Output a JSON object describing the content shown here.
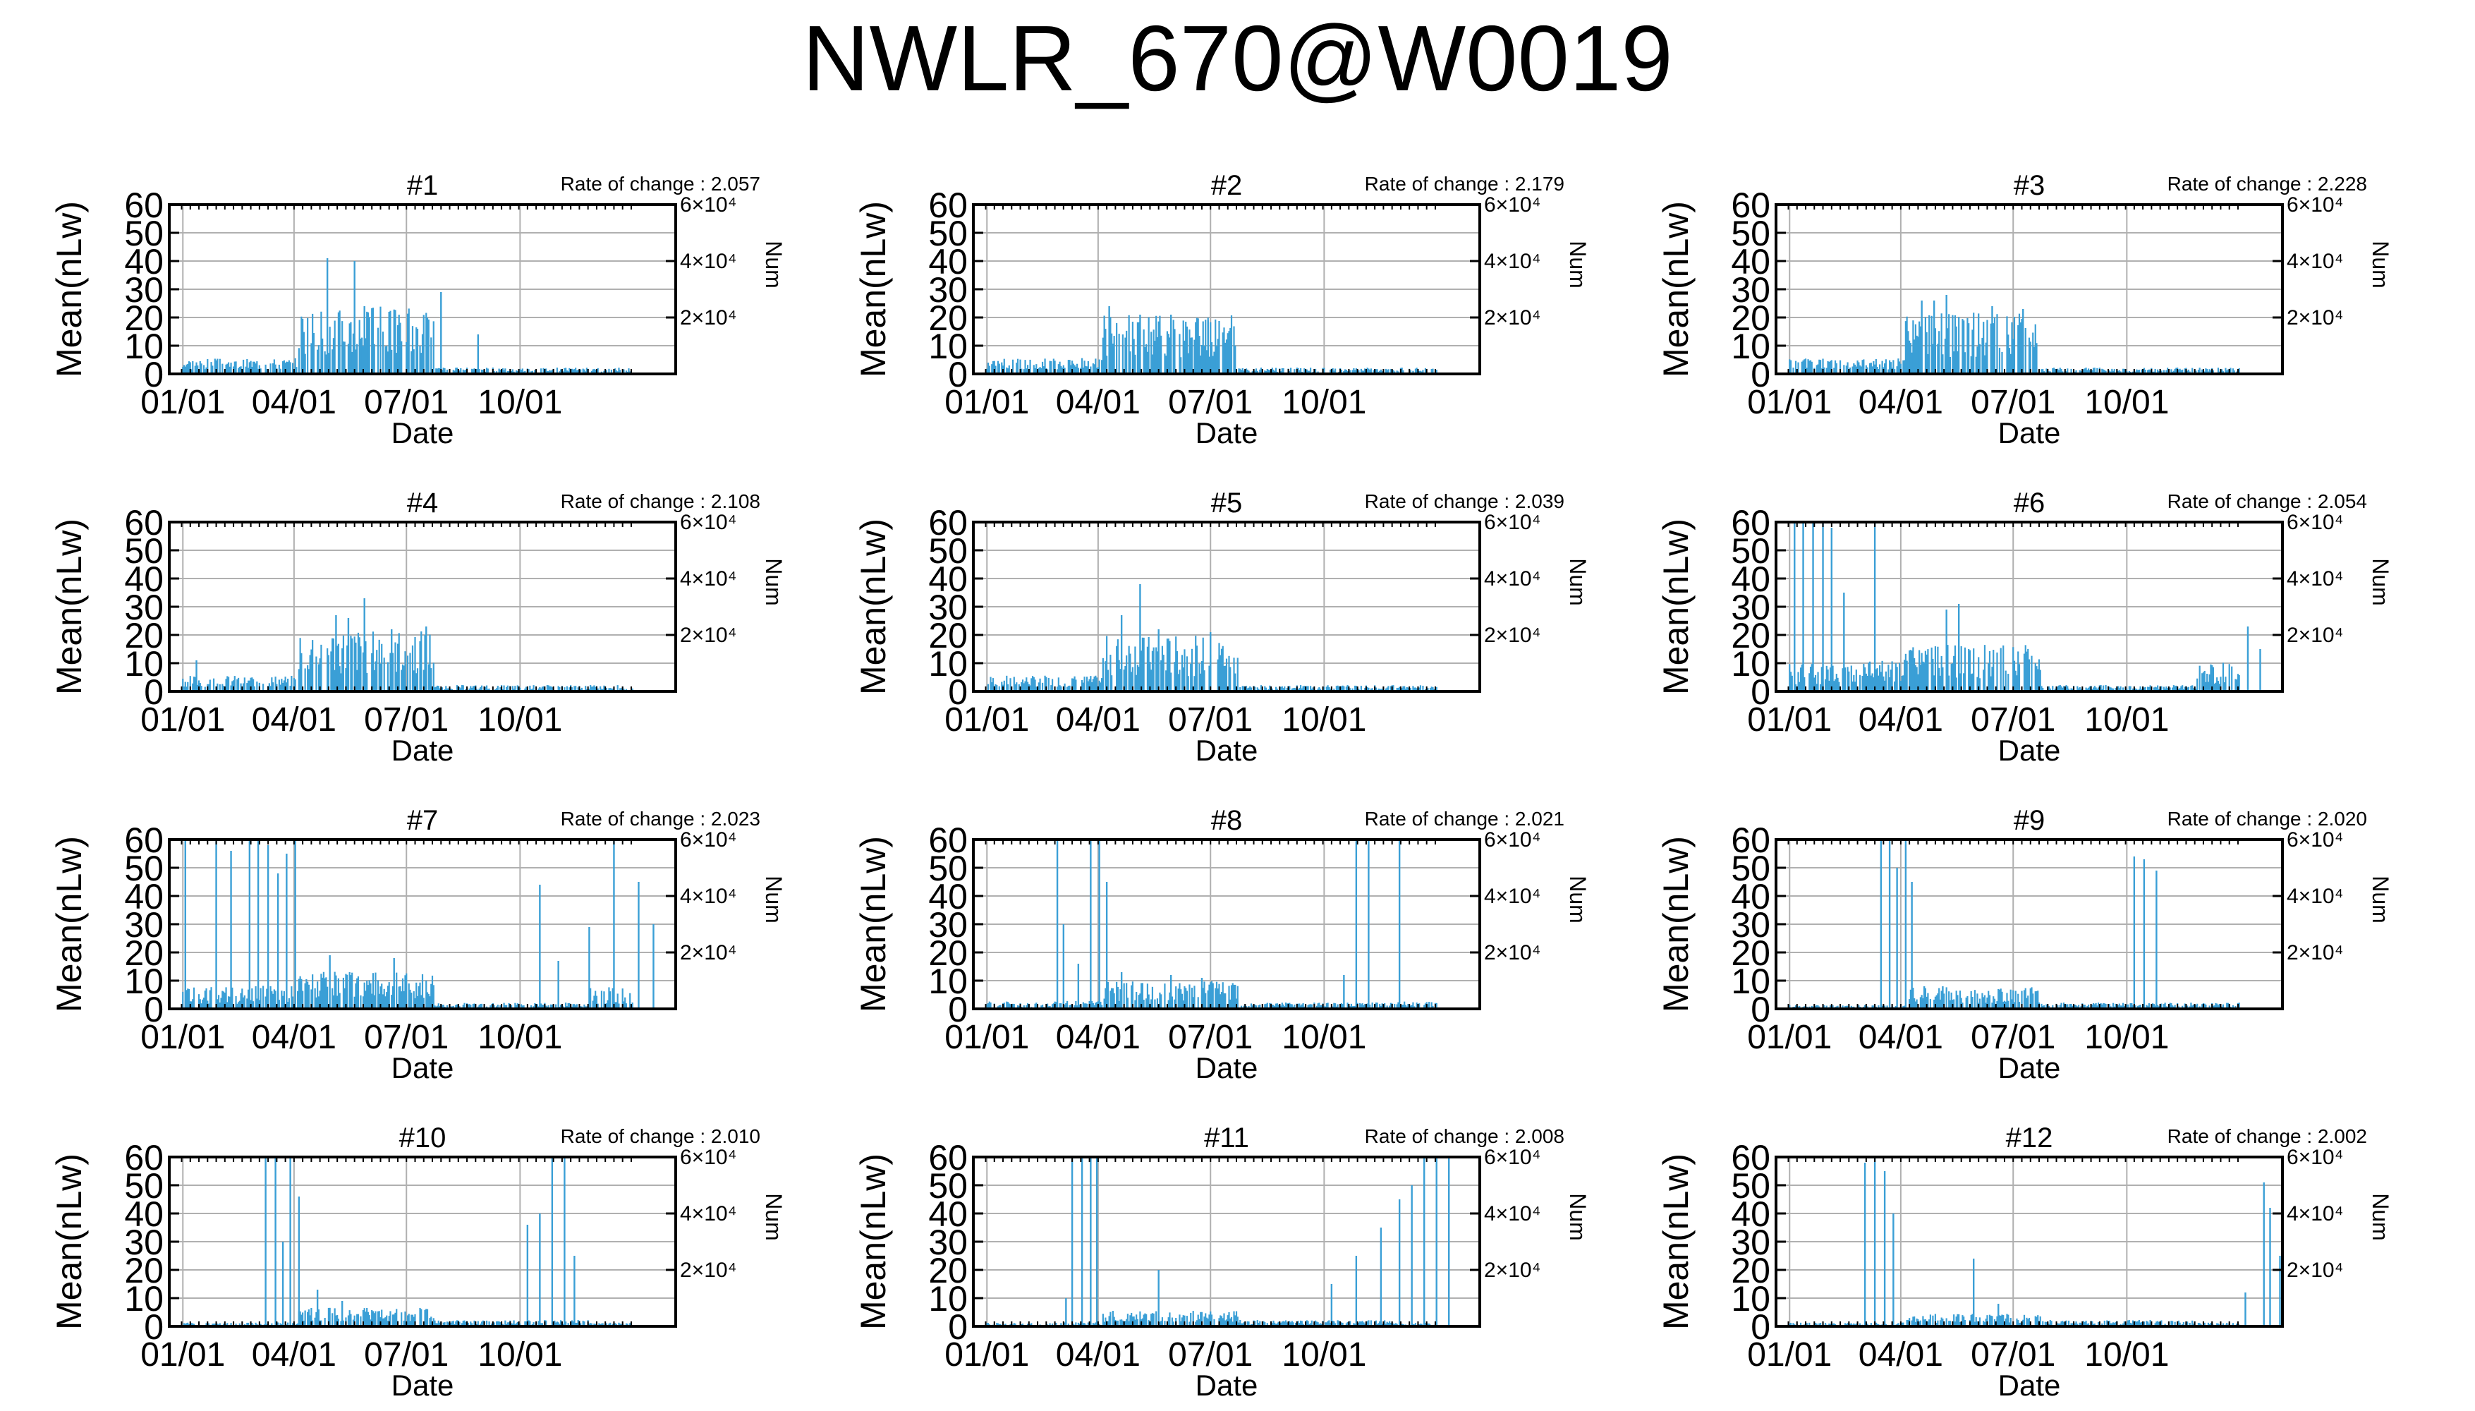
{
  "title": "NWLR_670@W0019",
  "colors": {
    "bar": "#3a9fd6",
    "grid": "#b0b0b0",
    "axis": "#000000"
  },
  "common": {
    "ylabel": "Mean(nLw)",
    "xlabel": "Date",
    "y2label": "Num",
    "rate_prefix": "Rate of change : ",
    "xticks": [
      "01/01",
      "04/01",
      "07/01",
      "10/01"
    ],
    "xtick_days": [
      1,
      91,
      182,
      274
    ],
    "x_range_days": [
      -10,
      400
    ],
    "yticks": [
      0,
      10,
      20,
      30,
      40,
      50,
      60
    ],
    "ylim": [
      0,
      60
    ],
    "y2ticks_labels": [
      "2×10⁴",
      "4×10⁴",
      "6×10⁴"
    ],
    "y2ticks_values": [
      20000,
      40000,
      60000
    ],
    "y2lim": [
      0,
      60000
    ]
  },
  "chart_data": [
    {
      "type": "bar",
      "title": "#1",
      "rate": "2.057",
      "pattern": "spring",
      "peak": 22,
      "winter": 4,
      "spikes": [
        [
          118,
          41
        ],
        [
          140,
          40
        ],
        [
          148,
          24
        ],
        [
          168,
          22
        ],
        [
          210,
          29
        ],
        [
          240,
          14
        ]
      ]
    },
    {
      "type": "bar",
      "title": "#2",
      "rate": "2.179",
      "pattern": "spring",
      "peak": 19,
      "winter": 4,
      "spikes": [
        [
          100,
          24
        ],
        [
          125,
          21
        ],
        [
          150,
          21
        ],
        [
          180,
          19
        ]
      ]
    },
    {
      "type": "bar",
      "title": "#3",
      "rate": "2.228",
      "pattern": "spring",
      "peak": 20,
      "winter": 4,
      "spikes": [
        [
          108,
          26
        ],
        [
          118,
          26
        ],
        [
          128,
          28
        ],
        [
          165,
          24
        ],
        [
          190,
          23
        ]
      ]
    },
    {
      "type": "bar",
      "title": "#4",
      "rate": "2.108",
      "pattern": "spring",
      "peak": 20,
      "winter": 4,
      "spikes": [
        [
          12,
          11
        ],
        [
          125,
          27
        ],
        [
          135,
          26
        ],
        [
          148,
          33
        ],
        [
          170,
          22
        ],
        [
          198,
          23
        ]
      ]
    },
    {
      "type": "bar",
      "title": "#5",
      "rate": "2.039",
      "pattern": "spring",
      "peak": 18,
      "winter": 4,
      "spikes": [
        [
          110,
          27
        ],
        [
          125,
          38
        ],
        [
          140,
          22
        ],
        [
          182,
          21
        ]
      ]
    },
    {
      "type": "bar",
      "title": "#6",
      "rate": "2.054",
      "pattern": "winter",
      "peak": 15,
      "winter": 8,
      "spikes": [
        [
          5,
          60
        ],
        [
          12,
          60
        ],
        [
          20,
          60
        ],
        [
          28,
          60
        ],
        [
          35,
          58
        ],
        [
          45,
          35
        ],
        [
          70,
          60
        ],
        [
          128,
          29
        ],
        [
          138,
          31
        ],
        [
          372,
          23
        ],
        [
          382,
          15
        ]
      ]
    },
    {
      "type": "bar",
      "title": "#7",
      "rate": "2.023",
      "pattern": "winter",
      "peak": 12,
      "winter": 6,
      "spikes": [
        [
          3,
          60
        ],
        [
          28,
          60
        ],
        [
          40,
          56
        ],
        [
          55,
          60
        ],
        [
          62,
          60
        ],
        [
          70,
          58
        ],
        [
          78,
          48
        ],
        [
          85,
          55
        ],
        [
          92,
          60
        ],
        [
          120,
          19
        ],
        [
          172,
          18
        ],
        [
          290,
          44
        ],
        [
          305,
          17
        ],
        [
          330,
          29
        ],
        [
          350,
          60
        ],
        [
          370,
          45
        ],
        [
          382,
          30
        ]
      ]
    },
    {
      "type": "bar",
      "title": "#8",
      "rate": "2.021",
      "pattern": "winter",
      "peak": 9,
      "winter": 2,
      "spikes": [
        [
          58,
          60
        ],
        [
          63,
          30
        ],
        [
          75,
          16
        ],
        [
          85,
          60
        ],
        [
          92,
          60
        ],
        [
          98,
          45
        ],
        [
          110,
          13
        ],
        [
          150,
          12
        ],
        [
          175,
          11
        ],
        [
          290,
          12
        ],
        [
          300,
          60
        ],
        [
          310,
          60
        ],
        [
          335,
          60
        ]
      ]
    },
    {
      "type": "bar",
      "title": "#9",
      "rate": "2.020",
      "pattern": "spring",
      "peak": 7,
      "winter": 1,
      "spikes": [
        [
          75,
          60
        ],
        [
          82,
          60
        ],
        [
          88,
          50
        ],
        [
          95,
          60
        ],
        [
          100,
          45
        ],
        [
          110,
          8
        ],
        [
          125,
          8
        ],
        [
          280,
          54
        ],
        [
          288,
          53
        ],
        [
          298,
          49
        ]
      ]
    },
    {
      "type": "bar",
      "title": "#10",
      "rate": "2.010",
      "pattern": "winter",
      "peak": 6,
      "winter": 1,
      "spikes": [
        [
          68,
          60
        ],
        [
          76,
          60
        ],
        [
          82,
          30
        ],
        [
          88,
          60
        ],
        [
          95,
          46
        ],
        [
          110,
          13
        ],
        [
          130,
          9
        ],
        [
          280,
          36
        ],
        [
          290,
          40
        ],
        [
          300,
          60
        ],
        [
          310,
          60
        ],
        [
          318,
          25
        ]
      ]
    },
    {
      "type": "bar",
      "title": "#11",
      "rate": "2.008",
      "pattern": "winter",
      "peak": 5,
      "winter": 1,
      "spikes": [
        [
          65,
          10
        ],
        [
          70,
          60
        ],
        [
          78,
          60
        ],
        [
          85,
          60
        ],
        [
          90,
          60
        ],
        [
          140,
          20
        ],
        [
          280,
          15
        ],
        [
          300,
          25
        ],
        [
          320,
          35
        ],
        [
          335,
          45
        ],
        [
          345,
          50
        ],
        [
          355,
          60
        ],
        [
          365,
          60
        ],
        [
          375,
          60
        ]
      ]
    },
    {
      "type": "bar",
      "title": "#12",
      "rate": "2.002",
      "pattern": "winter",
      "peak": 4,
      "winter": 1,
      "spikes": [
        [
          62,
          58
        ],
        [
          70,
          60
        ],
        [
          78,
          55
        ],
        [
          85,
          40
        ],
        [
          150,
          24
        ],
        [
          170,
          8
        ],
        [
          370,
          12
        ],
        [
          385,
          51
        ],
        [
          390,
          42
        ],
        [
          398,
          25
        ]
      ]
    }
  ]
}
